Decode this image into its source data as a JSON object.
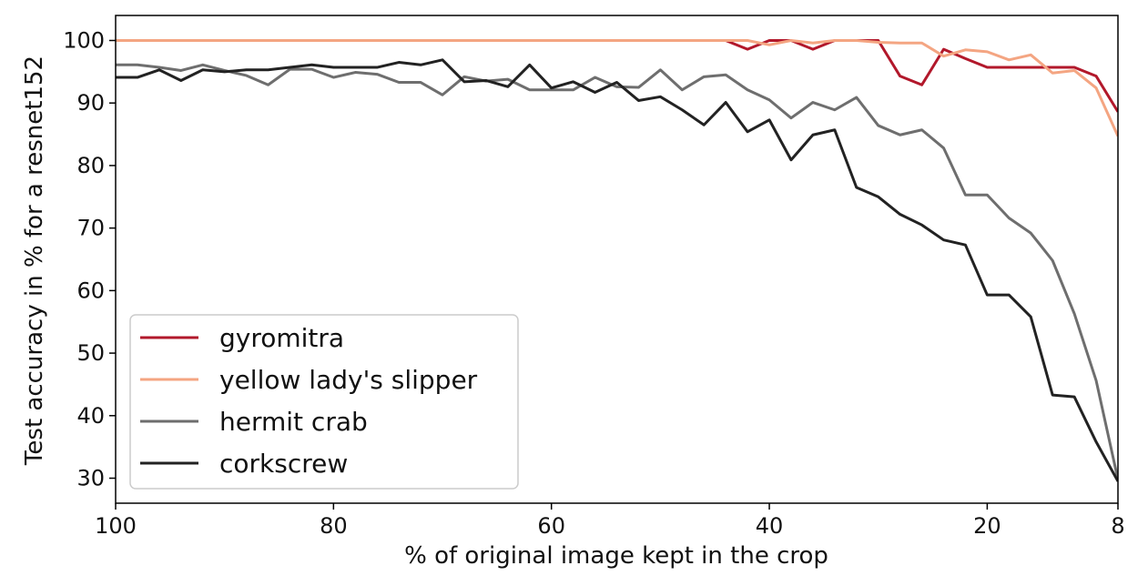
{
  "chart_data": {
    "type": "line",
    "title": "",
    "xlabel": "% of original image kept in the crop",
    "ylabel": "Test accuracy in % for a resnet152",
    "x_reversed": true,
    "xlim": [
      100,
      8
    ],
    "ylim": [
      26,
      104
    ],
    "xticks": [
      100,
      80,
      60,
      40,
      20,
      8
    ],
    "xtick_labels": [
      "100",
      "80",
      "60",
      "40",
      "20",
      "8"
    ],
    "yticks": [
      30,
      40,
      50,
      60,
      70,
      80,
      90,
      100
    ],
    "ytick_labels": [
      "30",
      "40",
      "50",
      "60",
      "70",
      "80",
      "90",
      "100"
    ],
    "grid": false,
    "legend_position": "lower-left",
    "x": [
      100,
      98,
      96,
      94,
      92,
      90,
      88,
      86,
      84,
      82,
      80,
      78,
      76,
      74,
      72,
      70,
      68,
      66,
      64,
      62,
      60,
      58,
      56,
      54,
      52,
      50,
      48,
      46,
      44,
      42,
      40,
      38,
      36,
      34,
      32,
      30,
      28,
      26,
      24,
      22,
      20,
      18,
      16,
      14,
      12,
      10,
      8
    ],
    "series": [
      {
        "name": "gyromitra",
        "color": "#b2182b",
        "values": [
          100,
          100,
          100,
          100,
          100,
          100,
          100,
          100,
          100,
          100,
          100,
          100,
          100,
          100,
          100,
          100,
          100,
          100,
          100,
          100,
          100,
          100,
          100,
          100,
          100,
          100,
          100,
          100,
          100,
          98.6,
          100,
          100,
          98.6,
          100,
          100,
          100,
          94.3,
          92.9,
          98.6,
          97.1,
          95.7,
          95.7,
          95.7,
          95.7,
          95.7,
          94.3,
          88.6
        ]
      },
      {
        "name": "yellow lady's slipper",
        "color": "#f4a582",
        "values": [
          100,
          100,
          100,
          100,
          100,
          100,
          100,
          100,
          100,
          100,
          100,
          100,
          100,
          100,
          100,
          100,
          100,
          100,
          100,
          100,
          100,
          100,
          100,
          100,
          100,
          100,
          100,
          100,
          100,
          100,
          99.3,
          100,
          99.6,
          100,
          100,
          99.7,
          99.6,
          99.6,
          97.5,
          98.5,
          98.2,
          96.9,
          97.7,
          94.8,
          95.2,
          92.4,
          84.7
        ]
      },
      {
        "name": "hermit crab",
        "color": "#6e6e6e",
        "values": [
          96.1,
          96.1,
          95.7,
          95.2,
          96.1,
          95.2,
          94.4,
          92.9,
          95.4,
          95.4,
          94.1,
          94.9,
          94.6,
          93.3,
          93.3,
          91.3,
          94.2,
          93.5,
          93.8,
          92.1,
          92.1,
          92.1,
          94.1,
          92.6,
          92.5,
          95.3,
          92.1,
          94.2,
          94.5,
          92.1,
          90.5,
          87.6,
          90.1,
          88.9,
          90.9,
          86.4,
          84.9,
          85.7,
          82.8,
          75.3,
          75.3,
          71.6,
          69.2,
          64.8,
          56.3,
          45.6,
          29.8
        ]
      },
      {
        "name": "corkscrew",
        "color": "#222222",
        "values": [
          94.1,
          94.1,
          95.3,
          93.6,
          95.3,
          95.0,
          95.3,
          95.3,
          95.7,
          96.1,
          95.7,
          95.7,
          95.7,
          96.5,
          96.1,
          96.9,
          93.4,
          93.6,
          92.6,
          96.1,
          92.4,
          93.4,
          91.7,
          93.3,
          90.4,
          91.0,
          88.9,
          86.5,
          90.1,
          85.4,
          87.3,
          80.9,
          84.9,
          85.7,
          76.5,
          75.0,
          72.2,
          70.5,
          68.1,
          67.3,
          59.3,
          59.3,
          55.8,
          43.3,
          43.0,
          35.8,
          29.5
        ]
      }
    ]
  }
}
